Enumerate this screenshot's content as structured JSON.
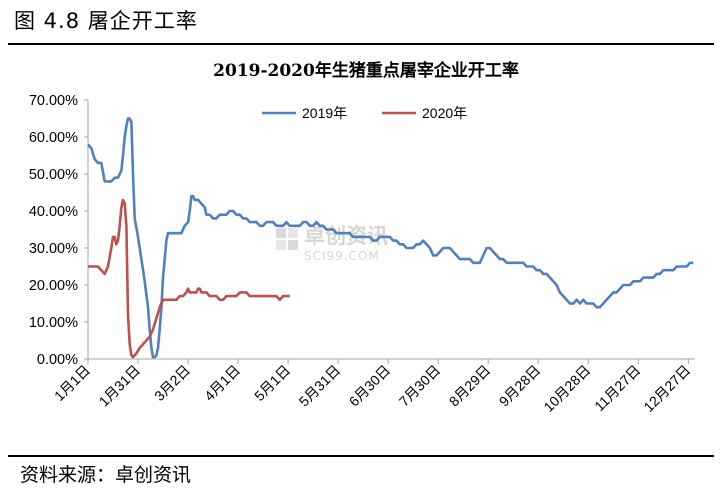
{
  "figure": {
    "label": "图 4.8 屠企开工率",
    "source": "资料来源：卓创资讯"
  },
  "watermark": {
    "cn": "卓创资讯",
    "en": "SCI99.COM"
  },
  "chart_data": {
    "type": "line",
    "title": "2019-2020年生猪重点屠宰企业开工率",
    "xlabel": "",
    "ylabel": "",
    "ylim": [
      0,
      70
    ],
    "y_tick_labels": [
      "0.00%",
      "10.00%",
      "20.00%",
      "30.00%",
      "40.00%",
      "50.00%",
      "60.00%",
      "70.00%"
    ],
    "x_tick_labels": [
      "1月1日",
      "1月31日",
      "3月2日",
      "4月1日",
      "5月1日",
      "5月31日",
      "6月30日",
      "7月30日",
      "8月29日",
      "9月28日",
      "10月28日",
      "11月27日",
      "12月27日"
    ],
    "grid": false,
    "legend_position": "top-center",
    "series": [
      {
        "name": "2019年",
        "color": "#4f81bd",
        "points": [
          [
            1,
            58
          ],
          [
            3,
            57
          ],
          [
            5,
            54
          ],
          [
            7,
            53
          ],
          [
            9,
            53
          ],
          [
            11,
            48
          ],
          [
            13,
            48
          ],
          [
            15,
            48
          ],
          [
            17,
            49
          ],
          [
            19,
            49
          ],
          [
            21,
            51
          ],
          [
            22,
            55
          ],
          [
            23,
            60
          ],
          [
            24,
            63
          ],
          [
            25,
            65
          ],
          [
            26,
            65
          ],
          [
            27,
            64
          ],
          [
            28,
            50
          ],
          [
            29,
            38
          ],
          [
            31,
            33
          ],
          [
            33,
            27
          ],
          [
            35,
            21
          ],
          [
            37,
            14
          ],
          [
            38,
            8
          ],
          [
            39,
            3
          ],
          [
            40,
            0.5
          ],
          [
            41,
            0.5
          ],
          [
            42,
            1
          ],
          [
            43,
            3
          ],
          [
            44,
            8
          ],
          [
            45,
            14
          ],
          [
            46,
            22
          ],
          [
            47,
            27
          ],
          [
            48,
            32
          ],
          [
            49,
            34
          ],
          [
            51,
            34
          ],
          [
            53,
            34
          ],
          [
            55,
            34
          ],
          [
            57,
            34
          ],
          [
            59,
            36
          ],
          [
            61,
            37
          ],
          [
            62,
            40
          ],
          [
            63,
            44
          ],
          [
            64,
            44
          ],
          [
            65,
            43
          ],
          [
            67,
            43
          ],
          [
            69,
            42
          ],
          [
            71,
            41
          ],
          [
            72,
            39
          ],
          [
            74,
            39
          ],
          [
            76,
            38
          ],
          [
            78,
            38
          ],
          [
            80,
            39
          ],
          [
            82,
            39
          ],
          [
            84,
            39
          ],
          [
            86,
            40
          ],
          [
            88,
            40
          ],
          [
            90,
            39
          ],
          [
            92,
            39
          ],
          [
            94,
            38
          ],
          [
            96,
            38
          ],
          [
            98,
            37
          ],
          [
            100,
            37
          ],
          [
            102,
            37
          ],
          [
            104,
            36
          ],
          [
            106,
            36
          ],
          [
            108,
            37
          ],
          [
            110,
            37
          ],
          [
            112,
            37
          ],
          [
            114,
            36
          ],
          [
            116,
            36
          ],
          [
            118,
            36
          ],
          [
            120,
            37
          ],
          [
            122,
            36
          ],
          [
            124,
            36
          ],
          [
            126,
            36
          ],
          [
            128,
            36
          ],
          [
            130,
            37
          ],
          [
            132,
            37
          ],
          [
            134,
            36
          ],
          [
            136,
            36
          ],
          [
            138,
            37
          ],
          [
            140,
            36
          ],
          [
            142,
            36
          ],
          [
            144,
            35
          ],
          [
            146,
            35
          ],
          [
            148,
            35
          ],
          [
            150,
            34
          ],
          [
            152,
            34
          ],
          [
            154,
            34
          ],
          [
            156,
            34
          ],
          [
            158,
            34
          ],
          [
            160,
            33
          ],
          [
            162,
            33
          ],
          [
            164,
            33
          ],
          [
            166,
            33
          ],
          [
            168,
            33
          ],
          [
            170,
            33
          ],
          [
            172,
            32
          ],
          [
            174,
            32
          ],
          [
            176,
            33
          ],
          [
            178,
            33
          ],
          [
            180,
            33
          ],
          [
            182,
            33
          ],
          [
            184,
            32
          ],
          [
            186,
            32
          ],
          [
            188,
            31
          ],
          [
            190,
            31
          ],
          [
            192,
            30
          ],
          [
            194,
            30
          ],
          [
            196,
            30
          ],
          [
            198,
            31
          ],
          [
            200,
            31
          ],
          [
            202,
            32
          ],
          [
            204,
            31
          ],
          [
            206,
            30
          ],
          [
            207,
            29
          ],
          [
            208,
            28
          ],
          [
            209,
            28
          ],
          [
            210,
            28
          ],
          [
            212,
            29
          ],
          [
            214,
            30
          ],
          [
            216,
            30
          ],
          [
            218,
            30
          ],
          [
            220,
            29
          ],
          [
            222,
            28
          ],
          [
            224,
            27
          ],
          [
            226,
            27
          ],
          [
            228,
            27
          ],
          [
            230,
            27
          ],
          [
            232,
            26
          ],
          [
            234,
            26
          ],
          [
            236,
            26
          ],
          [
            238,
            28
          ],
          [
            240,
            30
          ],
          [
            241,
            30
          ],
          [
            242,
            30
          ],
          [
            244,
            29
          ],
          [
            246,
            28
          ],
          [
            248,
            27
          ],
          [
            250,
            27
          ],
          [
            252,
            26
          ],
          [
            254,
            26
          ],
          [
            256,
            26
          ],
          [
            258,
            26
          ],
          [
            260,
            26
          ],
          [
            262,
            26
          ],
          [
            264,
            25
          ],
          [
            266,
            25
          ],
          [
            268,
            25
          ],
          [
            270,
            24
          ],
          [
            272,
            24
          ],
          [
            274,
            23
          ],
          [
            276,
            23
          ],
          [
            278,
            22
          ],
          [
            280,
            21
          ],
          [
            282,
            20
          ],
          [
            284,
            18
          ],
          [
            286,
            17
          ],
          [
            288,
            16
          ],
          [
            290,
            15
          ],
          [
            292,
            15
          ],
          [
            294,
            16
          ],
          [
            296,
            15
          ],
          [
            298,
            16
          ],
          [
            300,
            15
          ],
          [
            302,
            15
          ],
          [
            304,
            15
          ],
          [
            306,
            14
          ],
          [
            308,
            14
          ],
          [
            310,
            15
          ],
          [
            312,
            16
          ],
          [
            314,
            17
          ],
          [
            316,
            18
          ],
          [
            318,
            18
          ],
          [
            320,
            19
          ],
          [
            322,
            20
          ],
          [
            324,
            20
          ],
          [
            326,
            20
          ],
          [
            328,
            21
          ],
          [
            330,
            21
          ],
          [
            332,
            21
          ],
          [
            334,
            22
          ],
          [
            336,
            22
          ],
          [
            338,
            22
          ],
          [
            340,
            22
          ],
          [
            342,
            23
          ],
          [
            344,
            23
          ],
          [
            346,
            24
          ],
          [
            348,
            24
          ],
          [
            350,
            24
          ],
          [
            352,
            24
          ],
          [
            354,
            25
          ],
          [
            356,
            25
          ],
          [
            358,
            25
          ],
          [
            360,
            25
          ],
          [
            362,
            26
          ],
          [
            364,
            26
          ]
        ]
      },
      {
        "name": "2020年",
        "color": "#c0504d",
        "points": [
          [
            1,
            25
          ],
          [
            3,
            25
          ],
          [
            5,
            25
          ],
          [
            7,
            25
          ],
          [
            9,
            24
          ],
          [
            11,
            23
          ],
          [
            13,
            25
          ],
          [
            15,
            30
          ],
          [
            16,
            33
          ],
          [
            17,
            33
          ],
          [
            18,
            31
          ],
          [
            19,
            32
          ],
          [
            20,
            36
          ],
          [
            21,
            41
          ],
          [
            22,
            43
          ],
          [
            23,
            42
          ],
          [
            24,
            36
          ],
          [
            25,
            12
          ],
          [
            26,
            4
          ],
          [
            27,
            1
          ],
          [
            28,
            0.5
          ],
          [
            30,
            1.5
          ],
          [
            32,
            3
          ],
          [
            34,
            4
          ],
          [
            36,
            5
          ],
          [
            38,
            6
          ],
          [
            40,
            8
          ],
          [
            42,
            11
          ],
          [
            44,
            14
          ],
          [
            46,
            16
          ],
          [
            48,
            16
          ],
          [
            50,
            16
          ],
          [
            52,
            16
          ],
          [
            54,
            16
          ],
          [
            56,
            17
          ],
          [
            58,
            17
          ],
          [
            60,
            18
          ],
          [
            61,
            19
          ],
          [
            62,
            18
          ],
          [
            64,
            18
          ],
          [
            66,
            18
          ],
          [
            67,
            19
          ],
          [
            68,
            19
          ],
          [
            69,
            18
          ],
          [
            70,
            18
          ],
          [
            72,
            18
          ],
          [
            74,
            17
          ],
          [
            76,
            17
          ],
          [
            78,
            17
          ],
          [
            80,
            16
          ],
          [
            82,
            16
          ],
          [
            84,
            17
          ],
          [
            86,
            17
          ],
          [
            88,
            17
          ],
          [
            90,
            17
          ],
          [
            92,
            18
          ],
          [
            94,
            18
          ],
          [
            96,
            18
          ],
          [
            98,
            17
          ],
          [
            100,
            17
          ],
          [
            102,
            17
          ],
          [
            104,
            17
          ],
          [
            106,
            17
          ],
          [
            108,
            17
          ],
          [
            110,
            17
          ],
          [
            112,
            17
          ],
          [
            114,
            17
          ],
          [
            116,
            16
          ],
          [
            118,
            17
          ],
          [
            120,
            17
          ],
          [
            122,
            17
          ]
        ]
      }
    ]
  }
}
